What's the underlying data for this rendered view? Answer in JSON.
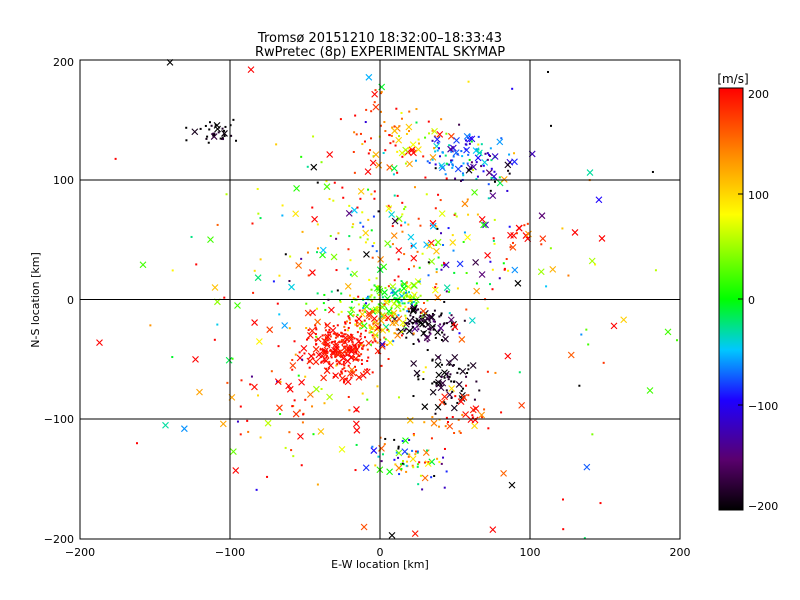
{
  "chart_data": {
    "type": "scatter",
    "title": "Tromsø 20151210 18:32:00–18:33:43",
    "subtitle": "RwPretec (8p) EXPERIMENTAL SKYMAP",
    "xlabel": "E-W location [km]",
    "ylabel": "N-S location [km]",
    "xlim": [
      -200,
      200
    ],
    "ylim": [
      -200,
      200
    ],
    "xticks": [
      "−200",
      "−100",
      "0",
      "100",
      "200"
    ],
    "yticks": [
      "−200",
      "−100",
      "0",
      "100",
      "200"
    ],
    "grid": true,
    "marker_types": [
      "dot",
      "cross"
    ],
    "colorbar": {
      "label": "[m/s]",
      "range": [
        -200,
        200
      ],
      "ticks": [
        "200",
        "100",
        "0",
        "−100",
        "−200"
      ],
      "colormap": [
        "#000000",
        "#5a006e",
        "#1e00ff",
        "#00c8ff",
        "#00ff00",
        "#ffff00",
        "#ff8c00",
        "#ff0000"
      ]
    },
    "clusters": [
      {
        "cx": -113,
        "cy": 140,
        "sx": 12,
        "sy": 6,
        "v": -200,
        "vs": 15,
        "n": 34
      },
      {
        "cx": 8,
        "cy": 145,
        "sx": 14,
        "sy": 18,
        "v": 180,
        "vs": 40,
        "n": 42
      },
      {
        "cx": 22,
        "cy": 130,
        "sx": 15,
        "sy": 12,
        "v": 100,
        "vs": 60,
        "n": 40
      },
      {
        "cx": 52,
        "cy": 122,
        "sx": 14,
        "sy": 7,
        "v": -80,
        "vs": 30,
        "n": 70
      },
      {
        "cx": 72,
        "cy": 105,
        "sx": 11,
        "sy": 9,
        "v": -110,
        "vs": 60,
        "n": 40
      },
      {
        "cx": 95,
        "cy": 55,
        "sx": 8,
        "sy": 8,
        "v": 190,
        "vs": 20,
        "n": 14
      },
      {
        "cx": 5,
        "cy": 0,
        "sx": 16,
        "sy": 8,
        "v": 20,
        "vs": 45,
        "n": 140
      },
      {
        "cx": 30,
        "cy": -20,
        "sx": 10,
        "sy": 8,
        "v": -185,
        "vs": 25,
        "n": 100
      },
      {
        "cx": -27,
        "cy": -42,
        "sx": 12,
        "sy": 14,
        "v": 195,
        "vs": 10,
        "n": 240
      },
      {
        "cx": -3,
        "cy": -20,
        "sx": 12,
        "sy": 9,
        "v": 130,
        "vs": 70,
        "n": 90
      },
      {
        "cx": 45,
        "cy": -70,
        "sx": 10,
        "sy": 10,
        "v": -195,
        "vs": 15,
        "n": 70
      },
      {
        "cx": 55,
        "cy": -95,
        "sx": 14,
        "sy": 14,
        "v": 185,
        "vs": 40,
        "n": 40
      },
      {
        "cx": 20,
        "cy": -135,
        "sx": 16,
        "sy": 10,
        "v": 0,
        "vs": 140,
        "n": 70
      },
      {
        "cx": -10,
        "cy": 60,
        "sx": 40,
        "sy": 40,
        "v": 80,
        "vs": 130,
        "n": 110
      },
      {
        "cx": 40,
        "cy": 35,
        "sx": 30,
        "sy": 25,
        "v": 50,
        "vs": 140,
        "n": 90
      },
      {
        "cx": -55,
        "cy": -80,
        "sx": 30,
        "sy": 25,
        "v": 170,
        "vs": 70,
        "n": 60
      },
      {
        "cx": 0,
        "cy": 0,
        "sx": 90,
        "sy": 100,
        "v": 80,
        "vs": 150,
        "n": 150
      }
    ],
    "points": [
      {
        "x": -140,
        "y": 198,
        "v": -200,
        "m": "cross"
      },
      {
        "x": -86,
        "y": 192,
        "v": 200,
        "m": "cross"
      },
      {
        "x": 112,
        "y": 190,
        "v": -200,
        "m": "dot"
      },
      {
        "x": -187,
        "y": -36,
        "v": 200,
        "m": "cross"
      },
      {
        "x": -158,
        "y": 29,
        "v": 20,
        "m": "cross"
      },
      {
        "x": -143,
        "y": -105,
        "v": -30,
        "m": "cross"
      },
      {
        "x": -113,
        "y": 50,
        "v": 20,
        "m": "cross"
      },
      {
        "x": 140,
        "y": 106,
        "v": -30,
        "m": "cross"
      },
      {
        "x": 148,
        "y": 51,
        "v": 200,
        "m": "cross"
      },
      {
        "x": 156,
        "y": -22,
        "v": 200,
        "m": "cross"
      },
      {
        "x": 180,
        "y": -76,
        "v": 20,
        "m": "cross"
      },
      {
        "x": 192,
        "y": -27,
        "v": 20,
        "m": "cross"
      },
      {
        "x": 198,
        "y": -34,
        "v": 20,
        "m": "dot"
      },
      {
        "x": 88,
        "y": -155,
        "v": -200,
        "m": "cross"
      },
      {
        "x": 122,
        "y": -167,
        "v": 200,
        "m": "dot"
      },
      {
        "x": 147,
        "y": -170,
        "v": 200,
        "m": "dot"
      },
      {
        "x": 8,
        "y": -197,
        "v": -200,
        "m": "cross"
      },
      {
        "x": -162,
        "y": -120,
        "v": 200,
        "m": "dot"
      },
      {
        "x": 114,
        "y": 145,
        "v": -200,
        "m": "dot"
      },
      {
        "x": 108,
        "y": 70,
        "v": -150,
        "m": "cross"
      },
      {
        "x": 130,
        "y": 56,
        "v": 200,
        "m": "cross"
      },
      {
        "x": -110,
        "y": 10,
        "v": 110,
        "m": "cross"
      },
      {
        "x": -123,
        "y": -50,
        "v": 200,
        "m": "cross"
      },
      {
        "x": -95,
        "y": -5,
        "v": 20,
        "m": "cross"
      }
    ]
  }
}
